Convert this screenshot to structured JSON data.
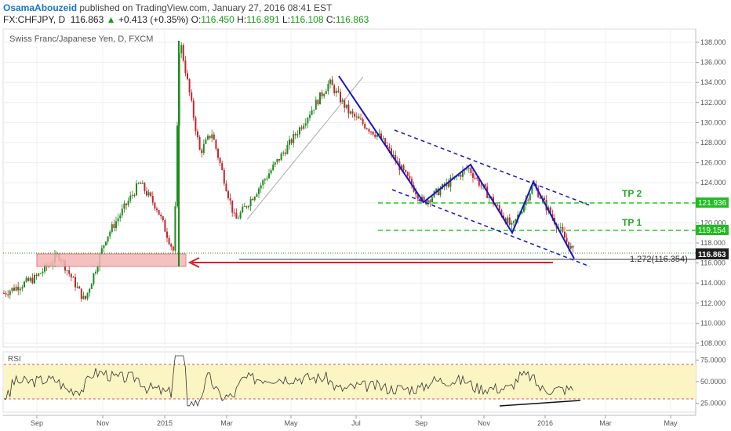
{
  "header": {
    "author": "OsamaAbouzeid",
    "published_text": "published on TradingView.com, January 27, 2016 08:41 EST",
    "symbol": "FX:CHFJPY, D",
    "last_price": "116.863",
    "change_arrow": "▲",
    "change": "+0.413 (+0.35%)",
    "o_label": "O:",
    "o_value": "116.450",
    "h_label": "H:",
    "h_value": "116.891",
    "l_label": "L:",
    "l_value": "116.108",
    "c_label": "C:",
    "c_value": "116.863"
  },
  "chart_data": [
    {
      "type": "candlestick",
      "title": "Swiss Franc/Japanese Yen, D, FXCM",
      "ylim": [
        107,
        139
      ],
      "y_ticks": [
        "108.000",
        "110.000",
        "112.000",
        "114.000",
        "116.000",
        "118.000",
        "120.000",
        "122.000",
        "124.000",
        "126.000",
        "128.000",
        "130.000",
        "132.000",
        "134.000",
        "136.000",
        "138.000"
      ],
      "x_ticks": [
        "Sep",
        "Nov",
        "2015",
        "Mar",
        "May",
        "Jul",
        "Sep",
        "Nov",
        "2016",
        "Mar",
        "May"
      ],
      "approx_close_path": [
        [
          "Aug 2014",
          113.0
        ],
        [
          "Sep 2014",
          114.5
        ],
        [
          "Oct 2014",
          116.8
        ],
        [
          "Oct 2014",
          112.2
        ],
        [
          "Nov 2014",
          118.5
        ],
        [
          "Dec 2014",
          124.0
        ],
        [
          "Dec 2014",
          121.5
        ],
        [
          "Jan 2015",
          117.0
        ],
        [
          "Jan 15 2015",
          138.5
        ],
        [
          "Feb 2015",
          127.0
        ],
        [
          "Mar 2015",
          129.0
        ],
        [
          "Mar 2015",
          120.2
        ],
        [
          "Apr 2015",
          123.5
        ],
        [
          "May 2015",
          128.0
        ],
        [
          "Jun 2015",
          134.0
        ],
        [
          "Jul 2015",
          131.0
        ],
        [
          "Aug 2015",
          128.5
        ],
        [
          "Sep 2015",
          122.0
        ],
        [
          "Oct 2015",
          125.5
        ],
        [
          "Nov 2015",
          119.5
        ],
        [
          "Dec 2015",
          123.8
        ],
        [
          "Jan 2016",
          116.9
        ]
      ],
      "grid": true,
      "last_price_label": "116.863",
      "price_labels": [
        {
          "text": "121.936",
          "color": "#22bb22"
        },
        {
          "text": "119.154",
          "color": "#22bb22"
        }
      ],
      "annotations": [
        {
          "text": "TP 2",
          "color": "#22aa22"
        },
        {
          "text": "TP 1",
          "color": "#22aa22"
        },
        {
          "text": "1.272(116.354)",
          "color": "#333333"
        }
      ]
    },
    {
      "type": "line",
      "title": "RSI",
      "ylim": [
        15,
        85
      ],
      "y_ticks": [
        "25.0000",
        "50.0000",
        "75.0000"
      ],
      "overbought": 70,
      "oversold": 30
    }
  ],
  "colors": {
    "up": "#1e8c1e",
    "down": "#c0272d",
    "trendline": "#1515c8",
    "target_line": "#22cc22",
    "arrow": "#e02020",
    "support_zone": "#f4b6b6",
    "rsi_band": "#fbf5c4"
  }
}
